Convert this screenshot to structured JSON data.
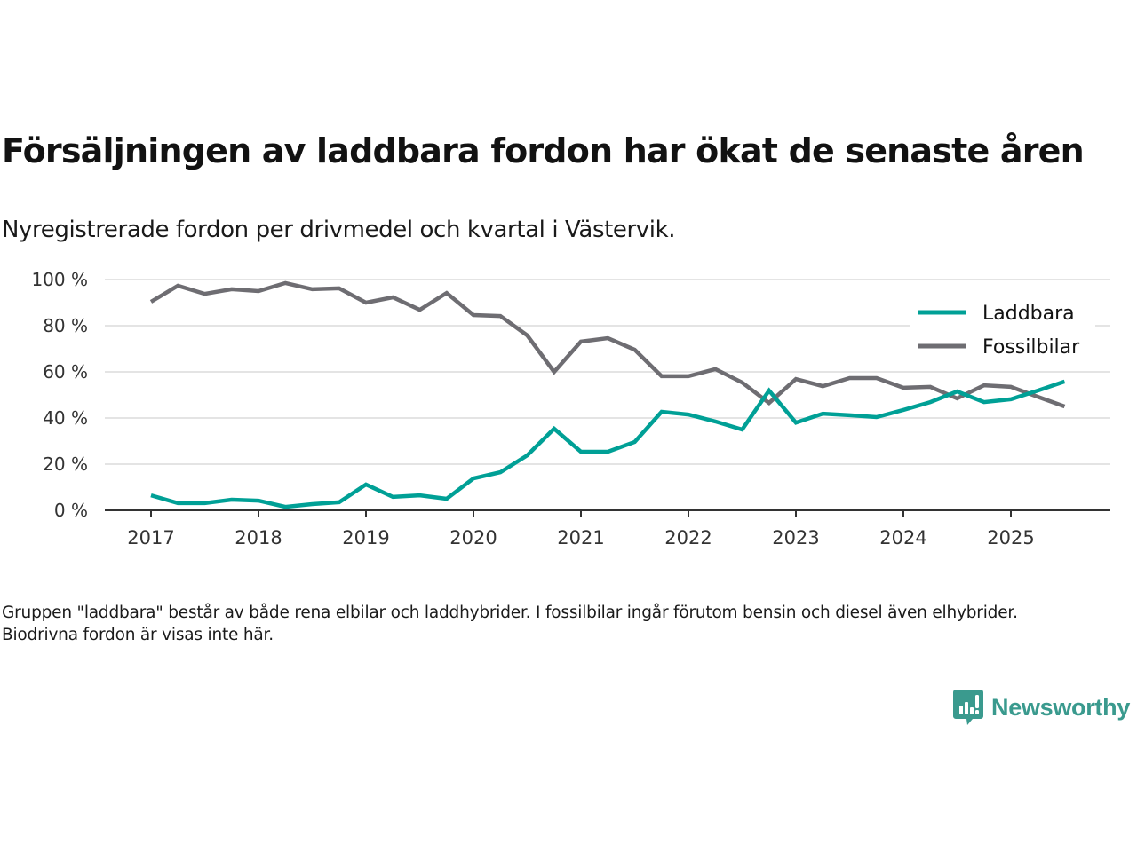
{
  "header": {
    "title": "Försäljningen av laddbara fordon har ökat de senaste åren",
    "subtitle": "Nyregistrerade fordon per drivmedel och kvartal i Västervik."
  },
  "footer": {
    "note": "Gruppen \"laddbara\" består av både rena elbilar och laddhybrider. I fossilbilar ingår förutom bensin och diesel även elhybrider. Biodrivna fordon är visas inte här.",
    "brand": "Newsworthy",
    "brand_color": "#3a9a8e"
  },
  "chart_data": {
    "type": "line",
    "title": "Försäljningen av laddbara fordon har ökat de senaste åren",
    "subtitle": "Nyregistrerade fordon per drivmedel och kvartal i Västervik.",
    "xlabel": "",
    "ylabel": "",
    "x": [
      "2017 Q1",
      "2017 Q2",
      "2017 Q3",
      "2017 Q4",
      "2018 Q1",
      "2018 Q2",
      "2018 Q3",
      "2018 Q4",
      "2019 Q1",
      "2019 Q2",
      "2019 Q3",
      "2019 Q4",
      "2020 Q1",
      "2020 Q2",
      "2020 Q3",
      "2020 Q4",
      "2021 Q1",
      "2021 Q2",
      "2021 Q3",
      "2021 Q4",
      "2022 Q1",
      "2022 Q2",
      "2022 Q3",
      "2022 Q4",
      "2023 Q1",
      "2023 Q2",
      "2023 Q3",
      "2023 Q4",
      "2024 Q1",
      "2024 Q2",
      "2024 Q3",
      "2024 Q4",
      "2025 Q1",
      "2025 Q2",
      "2025 Q3"
    ],
    "x_start_year": 2017,
    "x_ticks": [
      "2017",
      "2018",
      "2019",
      "2020",
      "2021",
      "2022",
      "2023",
      "2024",
      "2025"
    ],
    "y_ticks": [
      0,
      20,
      40,
      60,
      80,
      100
    ],
    "y_tick_suffix": " %",
    "ylim": [
      0,
      100
    ],
    "grid": true,
    "legend_position": "top-right",
    "series": [
      {
        "name": "Laddbara",
        "color": "#00a096",
        "values": [
          6.5,
          3.1,
          3.1,
          4.6,
          4.2,
          1.5,
          2.7,
          3.5,
          11.2,
          5.8,
          6.5,
          5.0,
          13.8,
          16.5,
          23.8,
          35.4,
          25.4,
          25.4,
          29.6,
          42.7,
          41.5,
          38.5,
          35.0,
          51.9,
          38.0,
          41.9,
          41.2,
          40.4,
          43.5,
          46.9,
          51.5,
          46.9,
          48.1,
          51.9,
          55.8
        ]
      },
      {
        "name": "Fossilbilar",
        "color": "#6e6d72",
        "values": [
          90.4,
          97.3,
          93.8,
          95.8,
          95.0,
          98.5,
          95.8,
          96.2,
          90.0,
          92.3,
          86.9,
          94.2,
          84.6,
          84.2,
          75.8,
          60.0,
          73.1,
          74.6,
          69.6,
          58.1,
          58.1,
          61.2,
          55.4,
          46.5,
          56.9,
          53.8,
          57.3,
          57.3,
          53.1,
          53.5,
          48.5,
          54.2,
          53.5,
          49.2,
          45.0
        ]
      }
    ]
  }
}
